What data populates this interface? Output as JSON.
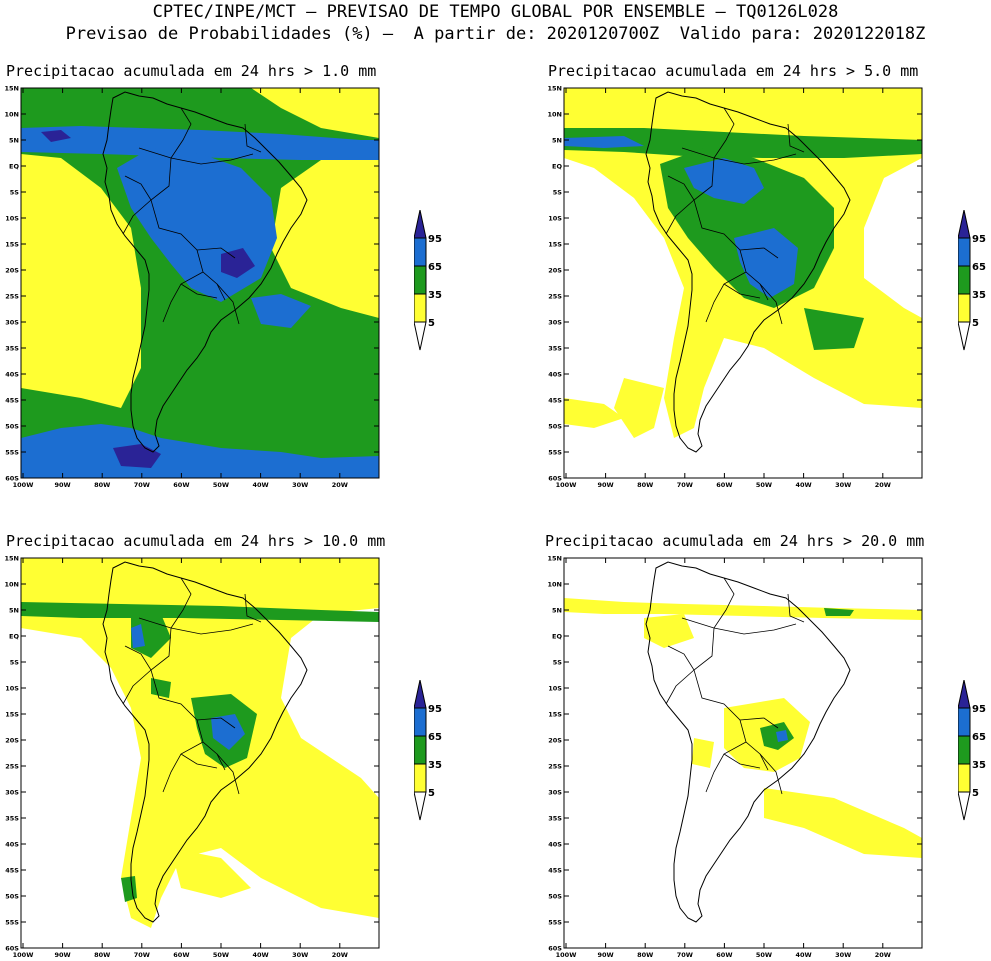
{
  "header": {
    "line1": "CPTEC/INPE/MCT – PREVISAO DE TEMPO GLOBAL POR ENSEMBLE – TQ0126L028",
    "line2": "Previsao de Probabilidades (%) –  A partir de: 2020120700Z  Valido para: 2020122018Z"
  },
  "lat_labels": [
    "15N",
    "10N",
    "5N",
    "EQ",
    "5S",
    "10S",
    "15S",
    "20S",
    "25S",
    "30S",
    "35S",
    "40S",
    "45S",
    "50S",
    "55S",
    "60S"
  ],
  "lon_labels": [
    "100W",
    "90W",
    "80W",
    "70W",
    "60W",
    "50W",
    "40W",
    "30W",
    "20W"
  ],
  "colorbar": {
    "levels": [
      "95",
      "65",
      "35",
      "5"
    ],
    "colors": {
      "c5": "#ffff33",
      "c35": "#1e9a1e",
      "c65": "#1c6ed1",
      "c95": "#2a2396"
    }
  },
  "panels": [
    {
      "title": "Precipitacao acumulada em 24 hrs > 1.0 mm"
    },
    {
      "title": "Precipitacao acumulada em 24 hrs > 5.0 mm"
    },
    {
      "title": "Precipitacao acumulada em 24 hrs > 10.0 mm"
    },
    {
      "title": "Precipitacao acumulada em 24 hrs > 20.0 mm"
    }
  ]
}
